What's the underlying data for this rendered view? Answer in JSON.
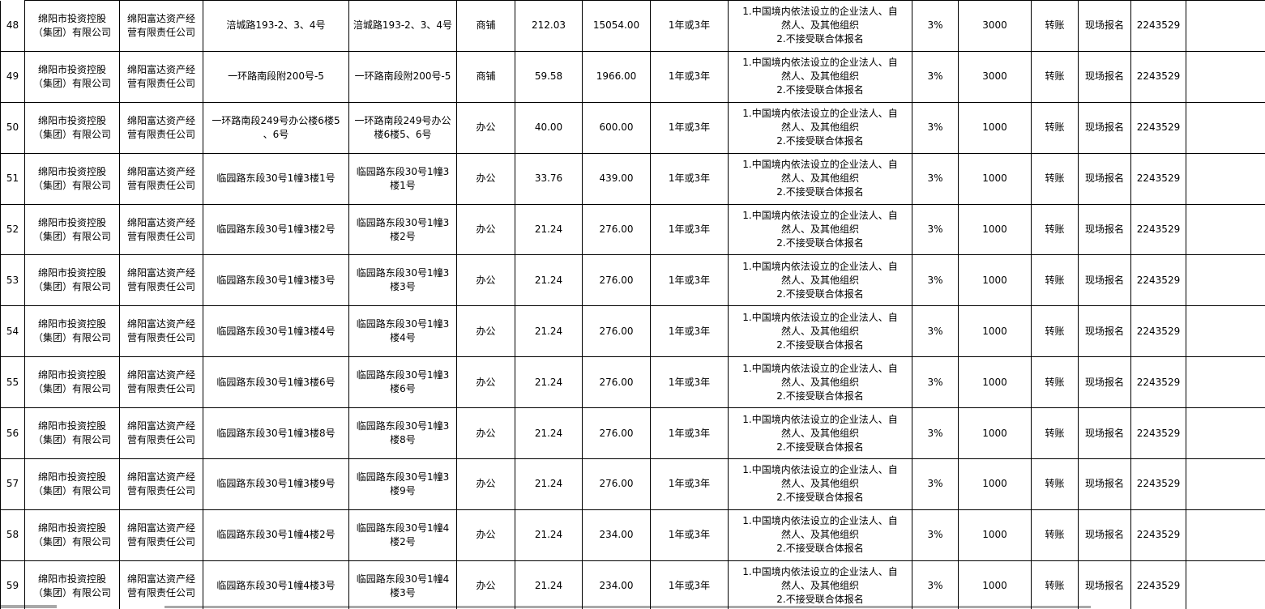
{
  "rows": [
    {
      "seq": "48",
      "owner": "绵阳市投资控股\n（集团）有限公司",
      "operator": "绵阳富达资产经\n营有限责任公司",
      "location": "涪城路193-2、3、4号",
      "location2": "涪城路193-2、3、4号",
      "use_type": "商铺",
      "area": "212.03",
      "price": "15054.00",
      "term": "1年或3年",
      "qualification": "1.中国境内依法设立的企业法人、自\n然人、及其他组织\n2.不接受联合体报名",
      "rate": "3%",
      "deposit": "3000",
      "payment": "转账",
      "signup": "现场报名",
      "contact": "2243529",
      "note": ""
    },
    {
      "seq": "49",
      "owner": "绵阳市投资控股\n（集团）有限公司",
      "operator": "绵阳富达资产经\n营有限责任公司",
      "location": "一环路南段附200号-5",
      "location2": "一环路南段附200号-5",
      "use_type": "商铺",
      "area": "59.58",
      "price": "1966.00",
      "term": "1年或3年",
      "qualification": "1.中国境内依法设立的企业法人、自\n然人、及其他组织\n2.不接受联合体报名",
      "rate": "3%",
      "deposit": "3000",
      "payment": "转账",
      "signup": "现场报名",
      "contact": "2243529",
      "note": ""
    },
    {
      "seq": "50",
      "owner": "绵阳市投资控股\n（集团）有限公司",
      "operator": "绵阳富达资产经\n营有限责任公司",
      "location": "一环路南段249号办公楼6楼5\n、6号",
      "location2": "一环路南段249号办公\n楼6楼5、6号",
      "use_type": "办公",
      "area": "40.00",
      "price": "600.00",
      "term": "1年或3年",
      "qualification": "1.中国境内依法设立的企业法人、自\n然人、及其他组织\n2.不接受联合体报名",
      "rate": "3%",
      "deposit": "1000",
      "payment": "转账",
      "signup": "现场报名",
      "contact": "2243529",
      "note": ""
    },
    {
      "seq": "51",
      "owner": "绵阳市投资控股\n（集团）有限公司",
      "operator": "绵阳富达资产经\n营有限责任公司",
      "location": "临园路东段30号1幢3楼1号",
      "location2": "临园路东段30号1幢3\n楼1号",
      "use_type": "办公",
      "area": "33.76",
      "price": "439.00",
      "term": "1年或3年",
      "qualification": "1.中国境内依法设立的企业法人、自\n然人、及其他组织\n2.不接受联合体报名",
      "rate": "3%",
      "deposit": "1000",
      "payment": "转账",
      "signup": "现场报名",
      "contact": "2243529",
      "note": ""
    },
    {
      "seq": "52",
      "owner": "绵阳市投资控股\n（集团）有限公司",
      "operator": "绵阳富达资产经\n营有限责任公司",
      "location": "临园路东段30号1幢3楼2号",
      "location2": "临园路东段30号1幢3\n楼2号",
      "use_type": "办公",
      "area": "21.24",
      "price": "276.00",
      "term": "1年或3年",
      "qualification": "1.中国境内依法设立的企业法人、自\n然人、及其他组织\n2.不接受联合体报名",
      "rate": "3%",
      "deposit": "1000",
      "payment": "转账",
      "signup": "现场报名",
      "contact": "2243529",
      "note": ""
    },
    {
      "seq": "53",
      "owner": "绵阳市投资控股\n（集团）有限公司",
      "operator": "绵阳富达资产经\n营有限责任公司",
      "location": "临园路东段30号1幢3楼3号",
      "location2": "临园路东段30号1幢3\n楼3号",
      "use_type": "办公",
      "area": "21.24",
      "price": "276.00",
      "term": "1年或3年",
      "qualification": "1.中国境内依法设立的企业法人、自\n然人、及其他组织\n2.不接受联合体报名",
      "rate": "3%",
      "deposit": "1000",
      "payment": "转账",
      "signup": "现场报名",
      "contact": "2243529",
      "note": ""
    },
    {
      "seq": "54",
      "owner": "绵阳市投资控股\n（集团）有限公司",
      "operator": "绵阳富达资产经\n营有限责任公司",
      "location": "临园路东段30号1幢3楼4号",
      "location2": "临园路东段30号1幢3\n楼4号",
      "use_type": "办公",
      "area": "21.24",
      "price": "276.00",
      "term": "1年或3年",
      "qualification": "1.中国境内依法设立的企业法人、自\n然人、及其他组织\n2.不接受联合体报名",
      "rate": "3%",
      "deposit": "1000",
      "payment": "转账",
      "signup": "现场报名",
      "contact": "2243529",
      "note": ""
    },
    {
      "seq": "55",
      "owner": "绵阳市投资控股\n（集团）有限公司",
      "operator": "绵阳富达资产经\n营有限责任公司",
      "location": "临园路东段30号1幢3楼6号",
      "location2": "临园路东段30号1幢3\n楼6号",
      "use_type": "办公",
      "area": "21.24",
      "price": "276.00",
      "term": "1年或3年",
      "qualification": "1.中国境内依法设立的企业法人、自\n然人、及其他组织\n2.不接受联合体报名",
      "rate": "3%",
      "deposit": "1000",
      "payment": "转账",
      "signup": "现场报名",
      "contact": "2243529",
      "note": ""
    },
    {
      "seq": "56",
      "owner": "绵阳市投资控股\n（集团）有限公司",
      "operator": "绵阳富达资产经\n营有限责任公司",
      "location": "临园路东段30号1幢3楼8号",
      "location2": "临园路东段30号1幢3\n楼8号",
      "use_type": "办公",
      "area": "21.24",
      "price": "276.00",
      "term": "1年或3年",
      "qualification": "1.中国境内依法设立的企业法人、自\n然人、及其他组织\n2.不接受联合体报名",
      "rate": "3%",
      "deposit": "1000",
      "payment": "转账",
      "signup": "现场报名",
      "contact": "2243529",
      "note": ""
    },
    {
      "seq": "57",
      "owner": "绵阳市投资控股\n（集团）有限公司",
      "operator": "绵阳富达资产经\n营有限责任公司",
      "location": "临园路东段30号1幢3楼9号",
      "location2": "临园路东段30号1幢3\n楼9号",
      "use_type": "办公",
      "area": "21.24",
      "price": "276.00",
      "term": "1年或3年",
      "qualification": "1.中国境内依法设立的企业法人、自\n然人、及其他组织\n2.不接受联合体报名",
      "rate": "3%",
      "deposit": "1000",
      "payment": "转账",
      "signup": "现场报名",
      "contact": "2243529",
      "note": ""
    },
    {
      "seq": "58",
      "owner": "绵阳市投资控股\n（集团）有限公司",
      "operator": "绵阳富达资产经\n营有限责任公司",
      "location": "临园路东段30号1幢4楼2号",
      "location2": "临园路东段30号1幢4\n楼2号",
      "use_type": "办公",
      "area": "21.24",
      "price": "234.00",
      "term": "1年或3年",
      "qualification": "1.中国境内依法设立的企业法人、自\n然人、及其他组织\n2.不接受联合体报名",
      "rate": "3%",
      "deposit": "1000",
      "payment": "转账",
      "signup": "现场报名",
      "contact": "2243529",
      "note": ""
    },
    {
      "seq": "59",
      "owner": "绵阳市投资控股\n（集团）有限公司",
      "operator": "绵阳富达资产经\n营有限责任公司",
      "location": "临园路东段30号1幢4楼3号",
      "location2": "临园路东段30号1幢4\n楼3号",
      "use_type": "办公",
      "area": "21.24",
      "price": "234.00",
      "term": "1年或3年",
      "qualification": "1.中国境内依法设立的企业法人、自\n然人、及其他组织\n2.不接受联合体报名",
      "rate": "3%",
      "deposit": "1000",
      "payment": "转账",
      "signup": "现场报名",
      "contact": "2243529",
      "note": ""
    }
  ]
}
